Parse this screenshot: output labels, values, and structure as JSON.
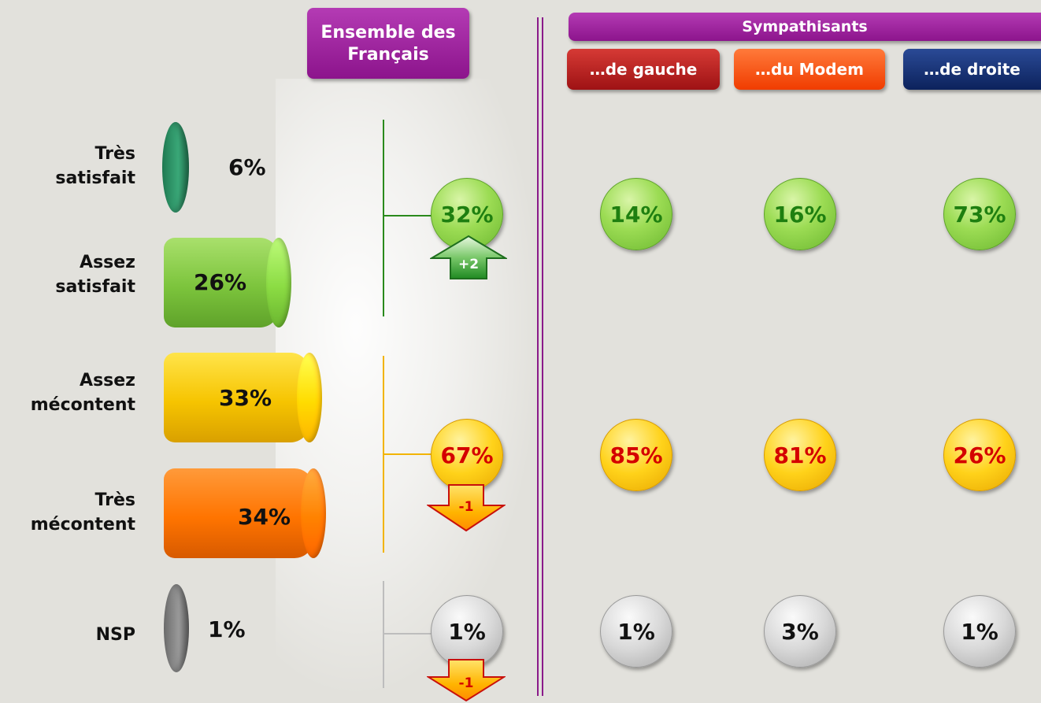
{
  "header": {
    "ensemble": "Ensemble des Français",
    "sympathisants": "Sympathisants",
    "gauche": "…de gauche",
    "modem": "…du Modem",
    "droite": "…de droite"
  },
  "colors": {
    "purple": "#9a1b9a",
    "gauche": "#b8181c",
    "modem": "#ff4a00",
    "droite": "#102b6e",
    "dark_green": "#2e9a6a",
    "light_green": "#8fd14f",
    "yellow": "#ffc800",
    "orange": "#ff7200",
    "grey": "#8a8a8a"
  },
  "chart_data": {
    "type": "bar",
    "categories": [
      "Très satisfait",
      "Assez satisfait",
      "Assez mécontent",
      "Très mécontent",
      "NSP"
    ],
    "values": [
      6,
      26,
      33,
      34,
      1
    ],
    "value_labels": [
      "6%",
      "26%",
      "33%",
      "34%",
      "1%"
    ],
    "category_lines": [
      [
        "Très",
        "satisfait"
      ],
      [
        "Assez",
        "satisfait"
      ],
      [
        "Assez",
        "mécontent"
      ],
      [
        "Très",
        "mécontent"
      ],
      [
        "NSP"
      ]
    ],
    "groups": [
      {
        "ensemble": "32%",
        "gauche": "14%",
        "modem": "16%",
        "droite": "73%",
        "evolution": "+2",
        "direction": "up"
      },
      {
        "ensemble": "67%",
        "gauche": "85%",
        "modem": "81%",
        "droite": "26%",
        "evolution": "-1",
        "direction": "down"
      },
      {
        "ensemble": "1%",
        "gauche": "1%",
        "modem": "3%",
        "droite": "1%",
        "evolution": "-1",
        "direction": "down"
      }
    ]
  }
}
